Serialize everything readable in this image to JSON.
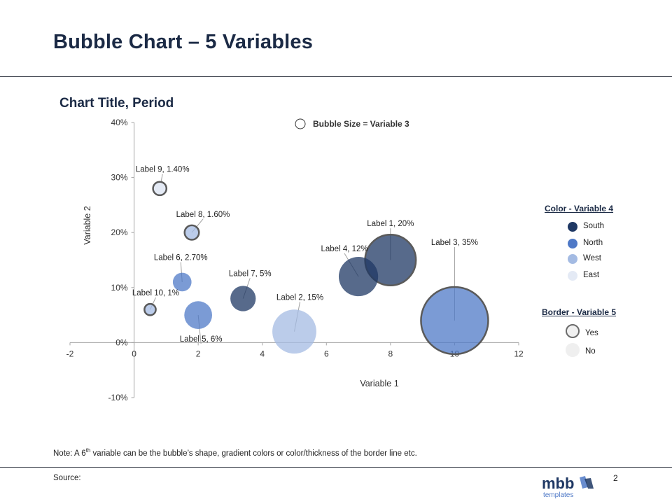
{
  "slide": {
    "title": "Bubble Chart – 5 Variables",
    "page_number": "2",
    "note_prefix": "Note: A 6",
    "note_sup": "th",
    "note_suffix": " variable can be the bubble’s shape, gradient colors or color/thickness of the border line etc.",
    "source": "Source:",
    "logo_text": "mbb",
    "logo_subtext": "templates"
  },
  "chart_data": {
    "type": "scatter",
    "title": "Chart Title, Period",
    "xlabel": "Variable 1",
    "ylabel": "Variable 2",
    "xlim": [
      -2,
      12
    ],
    "ylim": [
      -10,
      40
    ],
    "xticks": [
      "-2",
      "0",
      "2",
      "4",
      "6",
      "8",
      "10",
      "12"
    ],
    "yticks": [
      "-10%",
      "0%",
      "10%",
      "20%",
      "30%",
      "40%"
    ],
    "size_legend": "Bubble Size = Variable 3",
    "color_legend": {
      "title": "Color - Variable 4",
      "items": [
        {
          "name": "South",
          "color": "#1f3864"
        },
        {
          "name": "North",
          "color": "#4f79c7"
        },
        {
          "name": "West",
          "color": "#a4bbe3"
        },
        {
          "name": "East",
          "color": "#e4eaf5"
        }
      ]
    },
    "border_legend": {
      "title": "Border - Variable 5",
      "items": [
        {
          "name": "Yes",
          "border": true
        },
        {
          "name": "No",
          "border": false
        }
      ]
    },
    "points": [
      {
        "label": "Label 1, 20%",
        "x": 8.0,
        "y": 15,
        "size": 20,
        "color": "South",
        "border": true
      },
      {
        "label": "Label 2, 15%",
        "x": 5.0,
        "y": 2,
        "size": 15,
        "color": "West",
        "border": false
      },
      {
        "label": "Label 3, 35%",
        "x": 10.0,
        "y": 4,
        "size": 35,
        "color": "North",
        "border": true
      },
      {
        "label": "Label 4, 12%",
        "x": 7.0,
        "y": 12,
        "size": 12,
        "color": "South",
        "border": false
      },
      {
        "label": "Label 5, 6%",
        "x": 2.0,
        "y": 5,
        "size": 6,
        "color": "North",
        "border": false
      },
      {
        "label": "Label 6, 2.70%",
        "x": 1.5,
        "y": 11,
        "size": 2.7,
        "color": "North",
        "border": false
      },
      {
        "label": "Label 7, 5%",
        "x": 3.4,
        "y": 8,
        "size": 5,
        "color": "South",
        "border": false
      },
      {
        "label": "Label 8, 1.60%",
        "x": 1.8,
        "y": 20,
        "size": 1.6,
        "color": "West",
        "border": true
      },
      {
        "label": "Label 9, 1.40%",
        "x": 0.8,
        "y": 28,
        "size": 1.4,
        "color": "East",
        "border": true
      },
      {
        "label": "Label 10, 1%",
        "x": 0.5,
        "y": 6,
        "size": 1,
        "color": "West",
        "border": true
      }
    ]
  }
}
